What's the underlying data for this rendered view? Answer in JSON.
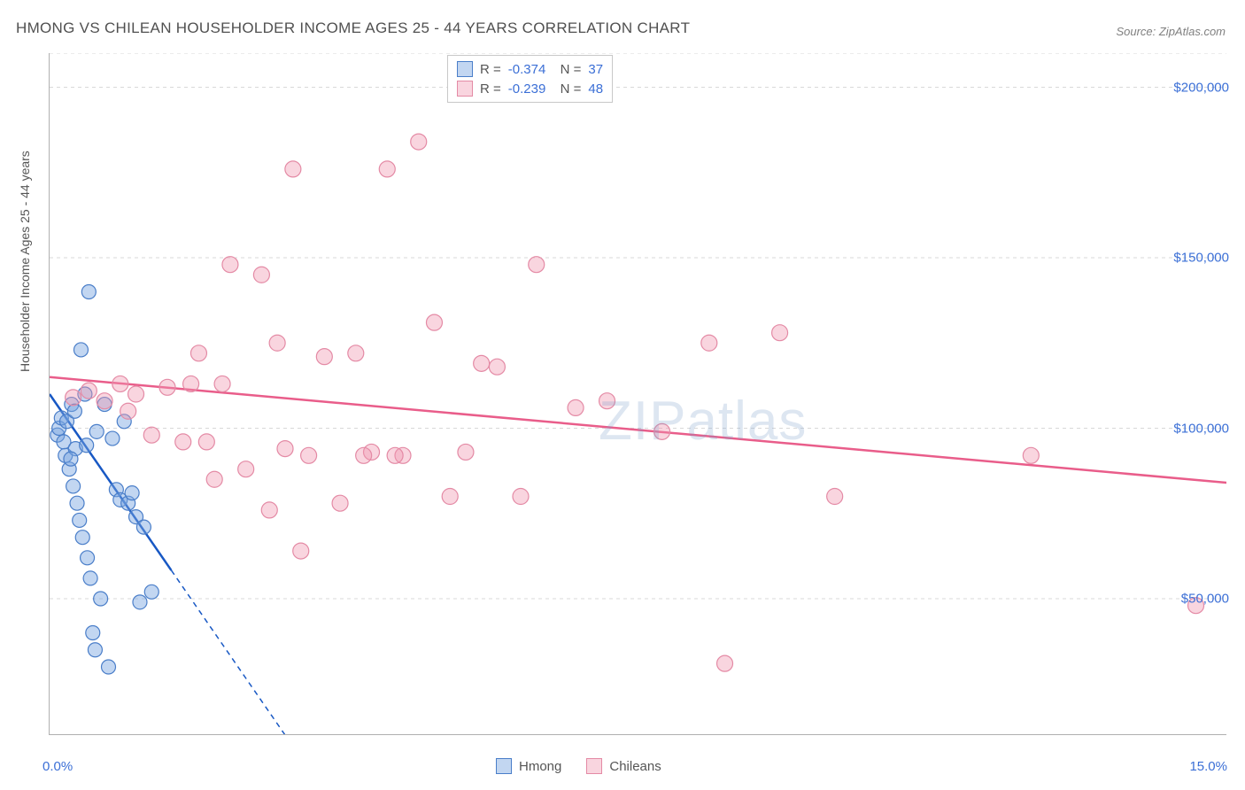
{
  "title": "HMONG VS CHILEAN HOUSEHOLDER INCOME AGES 25 - 44 YEARS CORRELATION CHART",
  "source": "Source: ZipAtlas.com",
  "watermark_a": "ZIP",
  "watermark_b": "atlas",
  "chart": {
    "type": "scatter",
    "ylabel": "Householder Income Ages 25 - 44 years",
    "xlim": [
      0,
      15
    ],
    "ylim": [
      10000,
      210000
    ],
    "xtick_label_left": "0.0%",
    "xtick_label_right": "15.0%",
    "ytick_labels": [
      "$50,000",
      "$100,000",
      "$150,000",
      "$200,000"
    ],
    "ytick_values": [
      50000,
      100000,
      150000,
      200000
    ],
    "xtick_positions": [
      0,
      1.7,
      3.4,
      5.1,
      6.8,
      8.5,
      10.2,
      11.9,
      13.6,
      15
    ],
    "grid_color": "#d8d8d8",
    "axis_color": "#b0b0b0",
    "background_color": "#ffffff",
    "text_color": "#555555",
    "value_color": "#3b6fd6",
    "series": [
      {
        "name": "Hmong",
        "marker_fill": "rgba(120,165,225,0.45)",
        "marker_stroke": "#4a7ec9",
        "line_color": "#1858c4",
        "marker_radius": 8,
        "r": "-0.374",
        "n": "37",
        "trend": {
          "x1": 0.0,
          "y1": 110000,
          "x2": 3.0,
          "y2": 10000
        },
        "trend_dash_after_x": 1.55,
        "points": [
          [
            0.1,
            98000
          ],
          [
            0.12,
            100000
          ],
          [
            0.15,
            103000
          ],
          [
            0.18,
            96000
          ],
          [
            0.2,
            92000
          ],
          [
            0.22,
            102000
          ],
          [
            0.25,
            88000
          ],
          [
            0.28,
            107000
          ],
          [
            0.3,
            83000
          ],
          [
            0.32,
            105000
          ],
          [
            0.35,
            78000
          ],
          [
            0.38,
            73000
          ],
          [
            0.4,
            123000
          ],
          [
            0.42,
            68000
          ],
          [
            0.45,
            110000
          ],
          [
            0.48,
            62000
          ],
          [
            0.5,
            140000
          ],
          [
            0.52,
            56000
          ],
          [
            0.55,
            40000
          ],
          [
            0.58,
            35000
          ],
          [
            0.6,
            99000
          ],
          [
            0.65,
            50000
          ],
          [
            0.7,
            107000
          ],
          [
            0.75,
            30000
          ],
          [
            0.8,
            97000
          ],
          [
            0.85,
            82000
          ],
          [
            0.9,
            79000
          ],
          [
            0.95,
            102000
          ],
          [
            1.0,
            78000
          ],
          [
            1.1,
            74000
          ],
          [
            1.2,
            71000
          ],
          [
            1.05,
            81000
          ],
          [
            1.3,
            52000
          ],
          [
            1.15,
            49000
          ],
          [
            0.33,
            94000
          ],
          [
            0.27,
            91000
          ],
          [
            0.47,
            95000
          ]
        ]
      },
      {
        "name": "Chileans",
        "marker_fill": "rgba(240,150,175,0.40)",
        "marker_stroke": "#e48aa5",
        "line_color": "#e95d8a",
        "marker_radius": 9,
        "r": "-0.239",
        "n": "48",
        "trend": {
          "x1": 0.0,
          "y1": 115000,
          "x2": 15.0,
          "y2": 84000
        },
        "points": [
          [
            0.3,
            109000
          ],
          [
            0.5,
            111000
          ],
          [
            0.7,
            108000
          ],
          [
            0.9,
            113000
          ],
          [
            1.1,
            110000
          ],
          [
            1.3,
            98000
          ],
          [
            1.5,
            112000
          ],
          [
            1.7,
            96000
          ],
          [
            1.9,
            122000
          ],
          [
            2.1,
            85000
          ],
          [
            2.3,
            148000
          ],
          [
            2.5,
            88000
          ],
          [
            2.7,
            145000
          ],
          [
            2.9,
            125000
          ],
          [
            3.1,
            176000
          ],
          [
            3.3,
            92000
          ],
          [
            3.5,
            121000
          ],
          [
            3.7,
            78000
          ],
          [
            3.9,
            122000
          ],
          [
            4.1,
            93000
          ],
          [
            4.3,
            176000
          ],
          [
            4.5,
            92000
          ],
          [
            4.7,
            184000
          ],
          [
            4.9,
            131000
          ],
          [
            5.1,
            80000
          ],
          [
            5.3,
            93000
          ],
          [
            5.5,
            119000
          ],
          [
            5.7,
            118000
          ],
          [
            6.0,
            80000
          ],
          [
            6.2,
            148000
          ],
          [
            6.7,
            106000
          ],
          [
            7.1,
            108000
          ],
          [
            7.8,
            99000
          ],
          [
            8.4,
            125000
          ],
          [
            8.6,
            31000
          ],
          [
            9.3,
            128000
          ],
          [
            10.0,
            80000
          ],
          [
            12.5,
            92000
          ],
          [
            14.6,
            48000
          ],
          [
            1.8,
            113000
          ],
          [
            2.2,
            113000
          ],
          [
            2.0,
            96000
          ],
          [
            3.2,
            64000
          ],
          [
            4.4,
            92000
          ],
          [
            4.0,
            92000
          ],
          [
            2.8,
            76000
          ],
          [
            3.0,
            94000
          ],
          [
            1.0,
            105000
          ]
        ]
      }
    ]
  },
  "legend_bottom": [
    {
      "label": "Hmong",
      "fill": "rgba(120,165,225,0.45)",
      "stroke": "#4a7ec9"
    },
    {
      "label": "Chileans",
      "fill": "rgba(240,150,175,0.40)",
      "stroke": "#e48aa5"
    }
  ]
}
